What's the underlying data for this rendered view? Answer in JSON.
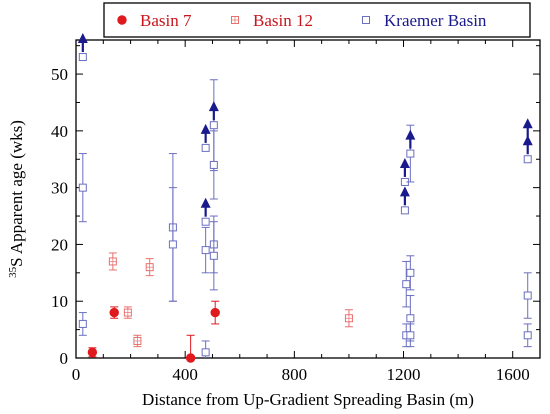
{
  "chart_data": {
    "type": "scatter",
    "xlabel": "Distance from Up-Gradient Spreading Basin (m)",
    "ylabel_superscript": "35",
    "ylabel_rest": "S Apparent age (wks)",
    "xlim": [
      0,
      1700
    ],
    "ylim": [
      0,
      56
    ],
    "xticks": [
      0,
      400,
      800,
      1200,
      1600
    ],
    "yticks": [
      0,
      10,
      20,
      30,
      40,
      50
    ],
    "x_minor_step": 100,
    "y_minor_step": 5,
    "grid": false,
    "legend_position": "top",
    "series": [
      {
        "name": "Basin 7",
        "marker": "filled-circle",
        "color": "#e0191e",
        "points": [
          {
            "x": 60,
            "y": 1,
            "err": 0.8
          },
          {
            "x": 140,
            "y": 8,
            "err": 1
          },
          {
            "x": 420,
            "y": 0,
            "err": 4
          },
          {
            "x": 510,
            "y": 8,
            "err": 2
          }
        ]
      },
      {
        "name": "Basin 12",
        "marker": "open-square",
        "color": "#e8706e",
        "points": [
          {
            "x": 135,
            "y": 17,
            "err": 1.5
          },
          {
            "x": 190,
            "y": 8,
            "err": 1
          },
          {
            "x": 225,
            "y": 3,
            "err": 1
          },
          {
            "x": 270,
            "y": 16,
            "err": 1.5
          },
          {
            "x": 1000,
            "y": 7,
            "err": 1.5
          }
        ]
      },
      {
        "name": "Kraemer Basin",
        "marker": "open-square",
        "color": "#6b6fbf",
        "points": [
          {
            "x": 25,
            "y": 53,
            "err": 0
          },
          {
            "x": 25,
            "y": 30,
            "err": 6
          },
          {
            "x": 25,
            "y": 6,
            "err": 2
          },
          {
            "x": 355,
            "y": 23,
            "err": 13
          },
          {
            "x": 355,
            "y": 20,
            "err": 10
          },
          {
            "x": 475,
            "y": 37,
            "err": 0
          },
          {
            "x": 475,
            "y": 24,
            "err": 0
          },
          {
            "x": 475,
            "y": 19,
            "err": 4
          },
          {
            "x": 475,
            "y": 1,
            "err": 2
          },
          {
            "x": 505,
            "y": 41,
            "err": 8
          },
          {
            "x": 505,
            "y": 34,
            "err": 6
          },
          {
            "x": 505,
            "y": 20,
            "err": 5
          },
          {
            "x": 505,
            "y": 18,
            "err": 6
          },
          {
            "x": 1205,
            "y": 31,
            "err": 0
          },
          {
            "x": 1205,
            "y": 26,
            "err": 0
          },
          {
            "x": 1210,
            "y": 13,
            "err": 4
          },
          {
            "x": 1210,
            "y": 4,
            "err": 2
          },
          {
            "x": 1225,
            "y": 36,
            "err": 5
          },
          {
            "x": 1225,
            "y": 15,
            "err": 3
          },
          {
            "x": 1225,
            "y": 7,
            "err": 4
          },
          {
            "x": 1225,
            "y": 4,
            "err": 2
          },
          {
            "x": 1655,
            "y": 35,
            "err": 0
          },
          {
            "x": 1655,
            "y": 11,
            "err": 4
          },
          {
            "x": 1655,
            "y": 4,
            "err": 2
          }
        ]
      }
    ],
    "arrow_annotations": [
      {
        "x": 25,
        "y": 53
      },
      {
        "x": 475,
        "y": 37
      },
      {
        "x": 475,
        "y": 24
      },
      {
        "x": 505,
        "y": 41
      },
      {
        "x": 1205,
        "y": 31
      },
      {
        "x": 1205,
        "y": 26
      },
      {
        "x": 1225,
        "y": 36
      },
      {
        "x": 1655,
        "y": 38
      },
      {
        "x": 1655,
        "y": 35
      }
    ],
    "arrow_color": "#1a1a8c"
  }
}
